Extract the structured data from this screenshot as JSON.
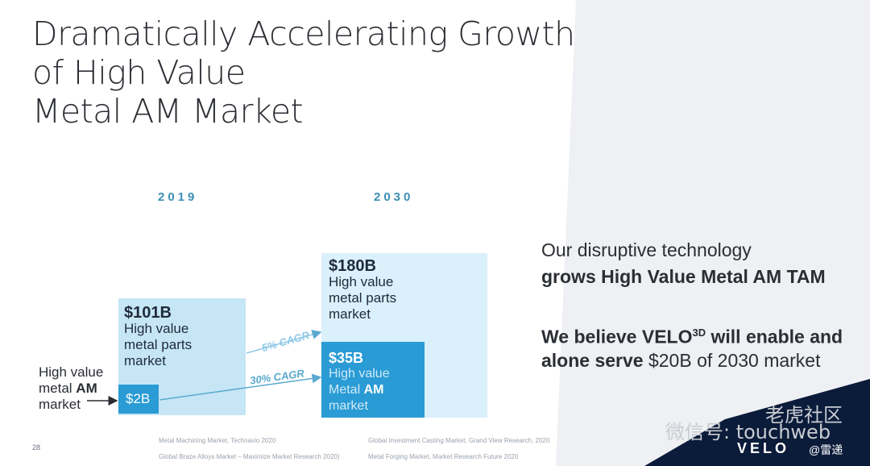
{
  "title": [
    "Dramatically Accelerating Growth",
    "of High Value",
    "Metal AM Market"
  ],
  "years": {
    "left": "2019",
    "right": "2030"
  },
  "box2019": {
    "value": "$101B",
    "lines": [
      "High value",
      "metal parts",
      "market"
    ],
    "inner": "$2B"
  },
  "box2030": {
    "value": "$180B",
    "lines": [
      "High value",
      "metal parts",
      "market"
    ]
  },
  "inner2030": {
    "value": "$35B",
    "line1": "High value",
    "line2a": "Metal ",
    "line2b": "AM",
    "line3": "market"
  },
  "ham": {
    "line1": "High value",
    "line2a": "metal ",
    "line2b": "AM",
    "line3": "market"
  },
  "cagr": {
    "top": "5% CAGR",
    "bottom": "30% CAGR"
  },
  "message": {
    "l1": "Our disruptive technology",
    "l2": "grows High Value Metal AM TAM",
    "l3a": "We believe VELO",
    "l3sup": "3D",
    "l3b": " will enable and",
    "l4a": "alone serve ",
    "l4b": "$20B of 2030 market"
  },
  "sources": {
    "s1": "Metal Machining Market, Technavio 2020",
    "s2": "Global Braze Alloys Market – Maximize Market Research 2020)",
    "s3": "Global Investment Casting Market, Grand View Research, 2020",
    "s4": "Metal Forging Market,  Market Research Future 2020"
  },
  "page_number": "28",
  "logo": "VELO",
  "watermark": {
    "wechat": "微信号: touchweb",
    "community": "老虎社区",
    "leidi": "@雷递"
  },
  "colors": {
    "light_box": "#c6e6f6",
    "mid_box": "#daf0fb",
    "dark_box": "#2a9bd4",
    "accent": "#3c8fb5",
    "panel": "#eef0f3",
    "navy": "#0b1b3a"
  }
}
